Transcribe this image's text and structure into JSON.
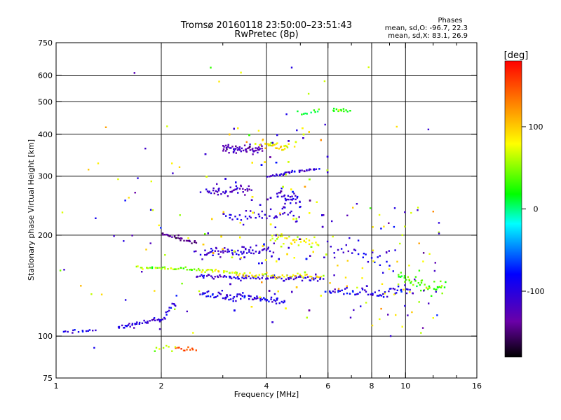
{
  "chart_data": {
    "type": "scatter",
    "title": "Tromsø 20160118 23:50:00–23:51:43",
    "subtitle": "RwPretec (8p)",
    "xlabel": "Frequency [MHz]",
    "ylabel": "Stationary phase Virtual Height [km]",
    "x_scale": "log",
    "y_scale": "log",
    "xlim": [
      1,
      16
    ],
    "ylim": [
      75,
      750
    ],
    "x_ticks": [
      1,
      2,
      4,
      6,
      8,
      10,
      16
    ],
    "x_tick_labels": [
      "1",
      "2",
      "4",
      "6",
      "8",
      "10",
      "16"
    ],
    "x_minor_ticks": [
      3,
      5,
      7,
      9,
      12,
      14
    ],
    "y_ticks": [
      75,
      100,
      200,
      300,
      400,
      500,
      600,
      750
    ],
    "y_tick_labels": [
      "75",
      "100",
      "200",
      "300",
      "400",
      "500",
      "600",
      "750"
    ],
    "grid": true,
    "grid_x": [
      2,
      4,
      6,
      8,
      10
    ],
    "grid_y": [
      100,
      200,
      300,
      400,
      500,
      600
    ],
    "stats": {
      "title": "Phases",
      "line_o": "mean, sd,O: -96.7, 22.3",
      "line_x": "mean, sd,X: 83.1, 26.9"
    },
    "colorbar": {
      "label": "[deg]",
      "range": [
        -180,
        180
      ],
      "ticks": [
        100,
        0,
        -100
      ],
      "tick_labels": [
        "100",
        "0",
        "-100"
      ],
      "colormap": [
        "#000000",
        "#6a00a8",
        "#0000ff",
        "#00ffff",
        "#00ff00",
        "#ffff00",
        "#ff0000"
      ]
    },
    "traces": [
      {
        "name": "lowE",
        "from": [
          1.05,
          103
        ],
        "to": [
          1.3,
          104
        ],
        "phase": -95,
        "n": 14,
        "jitter": 0.012
      },
      {
        "name": "lowE2",
        "from": [
          1.5,
          106
        ],
        "to": [
          2.05,
          113
        ],
        "phase": -110,
        "n": 40,
        "jitter": 0.012
      },
      {
        "name": "lowE3",
        "from": [
          2.05,
          117
        ],
        "to": [
          2.2,
          124
        ],
        "phase": -100,
        "n": 10,
        "jitter": 0.02
      },
      {
        "name": "spE",
        "from": [
          1.7,
          160
        ],
        "to": [
          2.6,
          158
        ],
        "phase": 45,
        "n": 40,
        "jitter": 0.01
      },
      {
        "name": "spE2",
        "from": [
          2.6,
          157
        ],
        "to": [
          3.3,
          154
        ],
        "phase": 70,
        "n": 25,
        "jitter": 0.012
      },
      {
        "name": "E1",
        "from": [
          2.0,
          202
        ],
        "to": [
          2.5,
          190
        ],
        "phase": -150,
        "n": 30,
        "jitter": 0.012
      },
      {
        "name": "F1o",
        "from": [
          2.5,
          150
        ],
        "to": [
          5.8,
          148
        ],
        "phase": -110,
        "n": 90,
        "jitter": 0.015
      },
      {
        "name": "F1x",
        "from": [
          3.3,
          152
        ],
        "to": [
          5.8,
          150
        ],
        "phase": 80,
        "n": 45,
        "jitter": 0.015
      },
      {
        "name": "F1b",
        "from": [
          2.6,
          133
        ],
        "to": [
          4.5,
          127
        ],
        "phase": -100,
        "n": 80,
        "jitter": 0.03
      },
      {
        "name": "F1c",
        "from": [
          2.6,
          175
        ],
        "to": [
          4.2,
          180
        ],
        "phase": -110,
        "n": 70,
        "jitter": 0.035
      },
      {
        "name": "F2o",
        "from": [
          3.0,
          360
        ],
        "to": [
          3.9,
          360
        ],
        "phase": -130,
        "n": 60,
        "jitter": 0.025
      },
      {
        "name": "F2x",
        "from": [
          3.9,
          375
        ],
        "to": [
          4.6,
          360
        ],
        "phase": 80,
        "n": 30,
        "jitter": 0.03
      },
      {
        "name": "F2b",
        "from": [
          4.0,
          300
        ],
        "to": [
          5.6,
          315
        ],
        "phase": -110,
        "n": 40,
        "jitter": 0.01
      },
      {
        "name": "F2c",
        "from": [
          2.7,
          270
        ],
        "to": [
          3.6,
          270
        ],
        "phase": -120,
        "n": 45,
        "jitter": 0.035
      },
      {
        "name": "F2d",
        "from": [
          3.0,
          225
        ],
        "to": [
          5.0,
          230
        ],
        "phase": -110,
        "n": 45,
        "jitter": 0.04
      },
      {
        "name": "F2e",
        "from": [
          4.1,
          195
        ],
        "to": [
          5.6,
          190
        ],
        "phase": 70,
        "n": 35,
        "jitter": 0.03
      },
      {
        "name": "F2f",
        "from": [
          4.3,
          265
        ],
        "to": [
          5.0,
          250
        ],
        "phase": -110,
        "n": 30,
        "jitter": 0.035
      },
      {
        "name": "X6",
        "from": [
          6.0,
          135
        ],
        "to": [
          10.5,
          135
        ],
        "phase": -100,
        "n": 55,
        "jitter": 0.035
      },
      {
        "name": "X6b",
        "from": [
          9.5,
          150
        ],
        "to": [
          13.0,
          135
        ],
        "phase": 30,
        "n": 45,
        "jitter": 0.06
      },
      {
        "name": "X6c",
        "from": [
          6.0,
          180
        ],
        "to": [
          9.0,
          165
        ],
        "phase": -100,
        "n": 25,
        "jitter": 0.06
      },
      {
        "name": "hi1",
        "from": [
          6.2,
          470
        ],
        "to": [
          6.9,
          470
        ],
        "phase": 20,
        "n": 12,
        "jitter": 0.015
      },
      {
        "name": "hi2",
        "from": [
          4.9,
          460
        ],
        "to": [
          5.7,
          465
        ],
        "phase": 10,
        "n": 10,
        "jitter": 0.015
      },
      {
        "name": "es",
        "from": [
          2.2,
          92
        ],
        "to": [
          2.5,
          91
        ],
        "phase": 150,
        "n": 12,
        "jitter": 0.01
      },
      {
        "name": "es2",
        "from": [
          1.9,
          90
        ],
        "to": [
          2.2,
          92
        ],
        "phase": 60,
        "n": 8,
        "jitter": 0.02
      }
    ],
    "scatter_regions": [
      {
        "name": "mid",
        "xlim": [
          2.6,
          6.0
        ],
        "ylim": [
          110,
          420
        ],
        "n": 450
      },
      {
        "name": "high",
        "xlim": [
          6.0,
          12.5
        ],
        "ylim": [
          100,
          250
        ],
        "n": 90
      },
      {
        "name": "low",
        "xlim": [
          1.0,
          2.6
        ],
        "ylim": [
          85,
          330
        ],
        "n": 45
      },
      {
        "name": "top",
        "xlim": [
          1.1,
          12.5
        ],
        "ylim": [
          330,
          650
        ],
        "n": 20
      }
    ]
  }
}
